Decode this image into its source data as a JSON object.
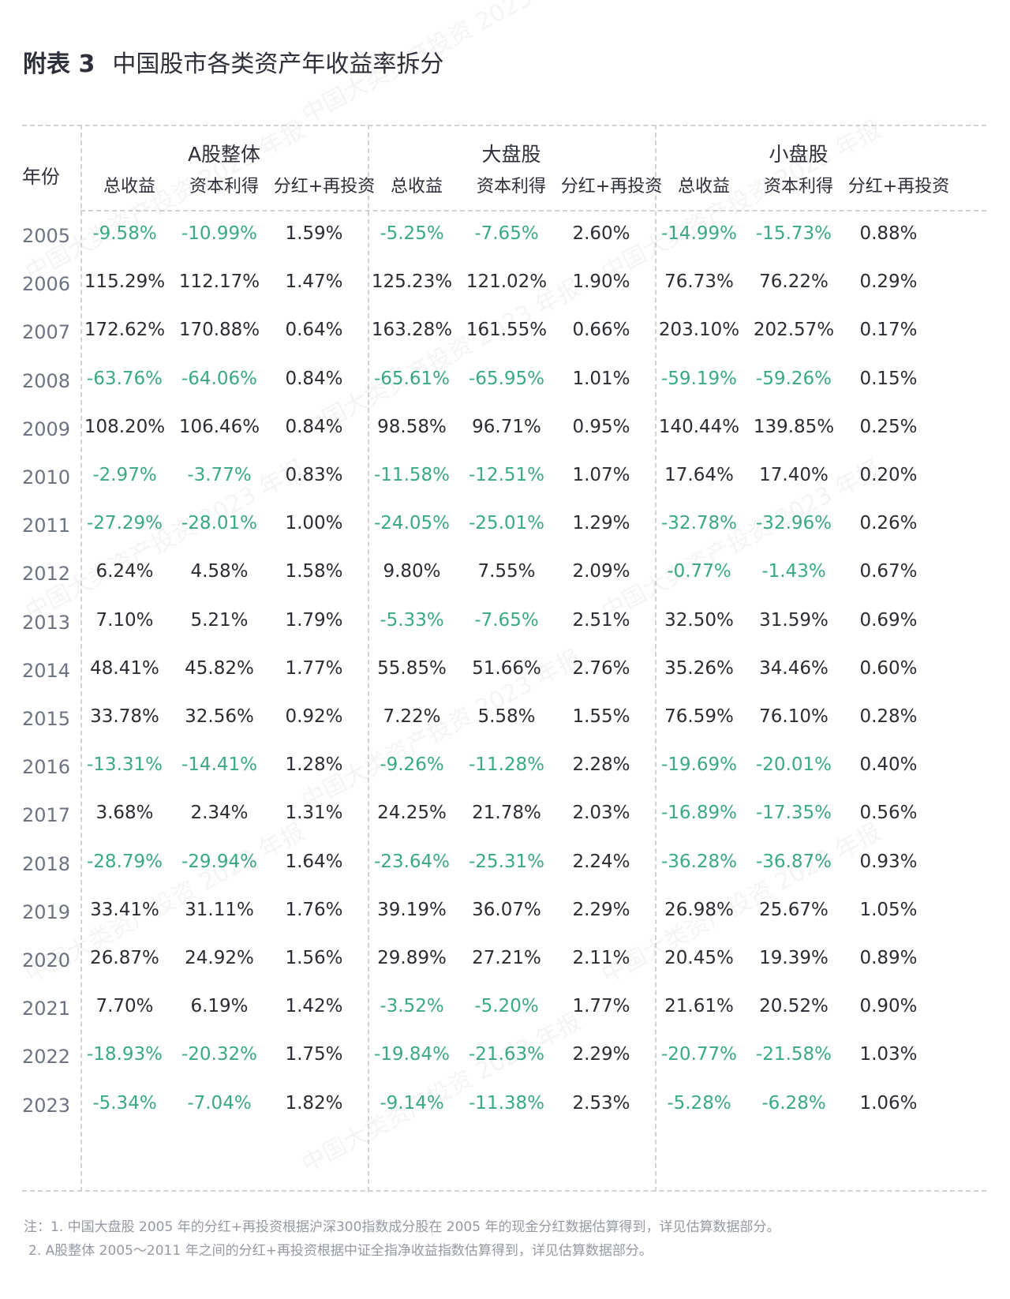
{
  "title": {
    "num": "附表 3",
    "text": "中国股市各类资产年收益率拆分"
  },
  "table": {
    "year_header": "年份",
    "groups": [
      "A股整体",
      "大盘股",
      "小盘股"
    ],
    "sub_headers": [
      "总收益",
      "资本利得",
      "分红+再投资"
    ],
    "rows": [
      {
        "year": "2005",
        "v": [
          "-9.58%",
          "-10.99%",
          "1.59%",
          "-5.25%",
          "-7.65%",
          "2.60%",
          "-14.99%",
          "-15.73%",
          "0.88%"
        ]
      },
      {
        "year": "2006",
        "v": [
          "115.29%",
          "112.17%",
          "1.47%",
          "125.23%",
          "121.02%",
          "1.90%",
          "76.73%",
          "76.22%",
          "0.29%"
        ]
      },
      {
        "year": "2007",
        "v": [
          "172.62%",
          "170.88%",
          "0.64%",
          "163.28%",
          "161.55%",
          "0.66%",
          "203.10%",
          "202.57%",
          "0.17%"
        ]
      },
      {
        "year": "2008",
        "v": [
          "-63.76%",
          "-64.06%",
          "0.84%",
          "-65.61%",
          "-65.95%",
          "1.01%",
          "-59.19%",
          "-59.26%",
          "0.15%"
        ]
      },
      {
        "year": "2009",
        "v": [
          "108.20%",
          "106.46%",
          "0.84%",
          "98.58%",
          "96.71%",
          "0.95%",
          "140.44%",
          "139.85%",
          "0.25%"
        ]
      },
      {
        "year": "2010",
        "v": [
          "-2.97%",
          "-3.77%",
          "0.83%",
          "-11.58%",
          "-12.51%",
          "1.07%",
          "17.64%",
          "17.40%",
          "0.20%"
        ]
      },
      {
        "year": "2011",
        "v": [
          "-27.29%",
          "-28.01%",
          "1.00%",
          "-24.05%",
          "-25.01%",
          "1.29%",
          "-32.78%",
          "-32.96%",
          "0.26%"
        ]
      },
      {
        "year": "2012",
        "v": [
          "6.24%",
          "4.58%",
          "1.58%",
          "9.80%",
          "7.55%",
          "2.09%",
          "-0.77%",
          "-1.43%",
          "0.67%"
        ]
      },
      {
        "year": "2013",
        "v": [
          "7.10%",
          "5.21%",
          "1.79%",
          "-5.33%",
          "-7.65%",
          "2.51%",
          "32.50%",
          "31.59%",
          "0.69%"
        ]
      },
      {
        "year": "2014",
        "v": [
          "48.41%",
          "45.82%",
          "1.77%",
          "55.85%",
          "51.66%",
          "2.76%",
          "35.26%",
          "34.46%",
          "0.60%"
        ]
      },
      {
        "year": "2015",
        "v": [
          "33.78%",
          "32.56%",
          "0.92%",
          "7.22%",
          "5.58%",
          "1.55%",
          "76.59%",
          "76.10%",
          "0.28%"
        ]
      },
      {
        "year": "2016",
        "v": [
          "-13.31%",
          "-14.41%",
          "1.28%",
          "-9.26%",
          "-11.28%",
          "2.28%",
          "-19.69%",
          "-20.01%",
          "0.40%"
        ]
      },
      {
        "year": "2017",
        "v": [
          "3.68%",
          "2.34%",
          "1.31%",
          "24.25%",
          "21.78%",
          "2.03%",
          "-16.89%",
          "-17.35%",
          "0.56%"
        ]
      },
      {
        "year": "2018",
        "v": [
          "-28.79%",
          "-29.94%",
          "1.64%",
          "-23.64%",
          "-25.31%",
          "2.24%",
          "-36.28%",
          "-36.87%",
          "0.93%"
        ]
      },
      {
        "year": "2019",
        "v": [
          "33.41%",
          "31.11%",
          "1.76%",
          "39.19%",
          "36.07%",
          "2.29%",
          "26.98%",
          "25.67%",
          "1.05%"
        ]
      },
      {
        "year": "2020",
        "v": [
          "26.87%",
          "24.92%",
          "1.56%",
          "29.89%",
          "27.21%",
          "2.11%",
          "20.45%",
          "19.39%",
          "0.89%"
        ]
      },
      {
        "year": "2021",
        "v": [
          "7.70%",
          "6.19%",
          "1.42%",
          "-3.52%",
          "-5.20%",
          "1.77%",
          "21.61%",
          "20.52%",
          "0.90%"
        ]
      },
      {
        "year": "2022",
        "v": [
          "-18.93%",
          "-20.32%",
          "1.75%",
          "-19.84%",
          "-21.63%",
          "2.29%",
          "-20.77%",
          "-21.58%",
          "1.03%"
        ]
      },
      {
        "year": "2023",
        "v": [
          "-5.34%",
          "-7.04%",
          "1.82%",
          "-9.14%",
          "-11.38%",
          "2.53%",
          "-5.28%",
          "-6.28%",
          "1.06%"
        ]
      }
    ]
  },
  "notes": [
    "注：1. 中国大盘股 2005 年的分红+再投资根据沪深300指数成分股在 2005 年的现金分红数据估算得到，详见估算数据部分。",
    "2. A股整体 2005～2011 年之间的分红+再投资根据中证全指净收益指数估算得到，详见估算数据部分。"
  ],
  "watermark": "中国大类资产投资 2023 年报",
  "colors": {
    "negative": "#3aa986",
    "positive": "#2a2c33",
    "year": "#6c7382",
    "rule": "#cfd2d6"
  }
}
